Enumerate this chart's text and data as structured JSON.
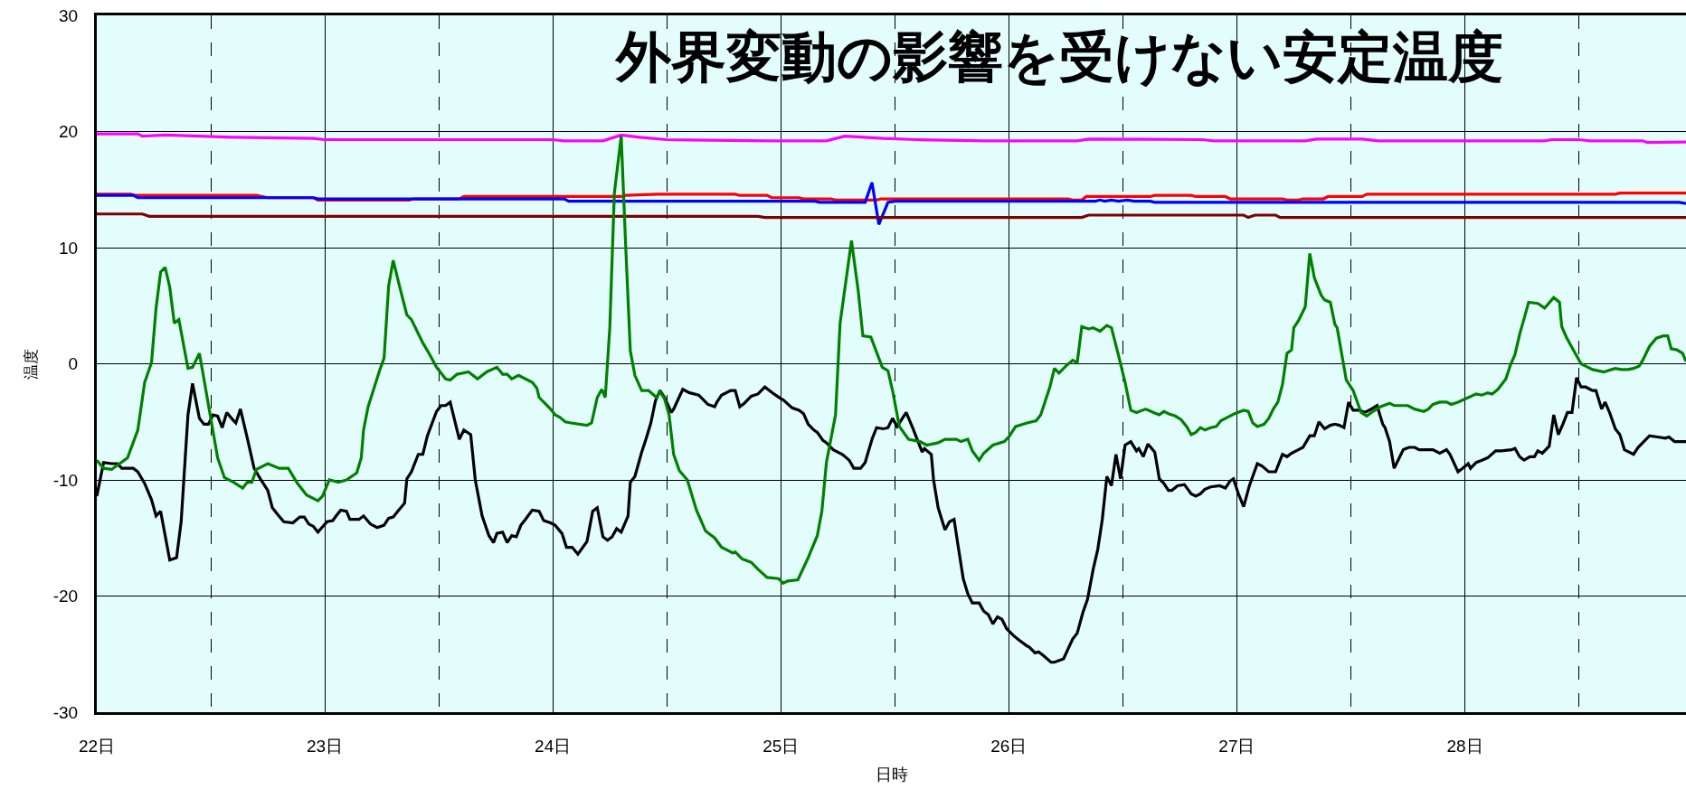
{
  "chart_data": {
    "type": "line",
    "title": "外界変動の影響を受けない安定温度",
    "xlabel": "日時",
    "ylabel": "温度",
    "xlim": [
      22,
      28.97
    ],
    "ylim": [
      -30,
      30
    ],
    "xticks": [
      {
        "value": 22,
        "label": "22日"
      },
      {
        "value": 22.5,
        "label": null
      },
      {
        "value": 23,
        "label": "23日"
      },
      {
        "value": 23.5,
        "label": null
      },
      {
        "value": 24,
        "label": "24日"
      },
      {
        "value": 24.5,
        "label": null
      },
      {
        "value": 25,
        "label": "25日"
      },
      {
        "value": 25.5,
        "label": null
      },
      {
        "value": 26,
        "label": "26日"
      },
      {
        "value": 26.5,
        "label": null
      },
      {
        "value": 27,
        "label": "27日"
      },
      {
        "value": 27.5,
        "label": null
      },
      {
        "value": 28,
        "label": "28日"
      },
      {
        "value": 28.5,
        "label": null
      }
    ],
    "yticks": [
      -30,
      -20,
      -10,
      0,
      10,
      20,
      30
    ],
    "grid": true,
    "series": [
      {
        "color": "#ff00ff",
        "x": [
          22.0,
          22.18,
          22.2,
          22.3,
          22.45,
          22.6,
          22.95,
          23.0,
          24.0,
          24.05,
          24.22,
          24.3,
          24.38,
          24.5,
          24.95,
          25.2,
          25.28,
          25.45,
          25.6,
          25.9,
          26.3,
          26.35,
          26.85,
          26.9,
          27.3,
          27.35,
          27.55,
          27.62,
          28.35,
          28.38,
          28.5,
          28.55,
          28.78,
          28.8,
          28.97
        ],
        "values": [
          19.8,
          19.8,
          19.6,
          19.7,
          19.6,
          19.5,
          19.4,
          19.3,
          19.3,
          19.2,
          19.2,
          19.7,
          19.5,
          19.3,
          19.2,
          19.2,
          19.6,
          19.4,
          19.3,
          19.2,
          19.2,
          19.35,
          19.3,
          19.2,
          19.2,
          19.35,
          19.35,
          19.2,
          19.2,
          19.3,
          19.3,
          19.2,
          19.2,
          19.05,
          19.1
        ]
      },
      {
        "color": "#ff0000",
        "x": [
          22.0,
          22.15,
          22.17,
          22.7,
          22.75,
          22.95,
          22.97,
          23.37,
          23.39,
          23.59,
          23.61,
          24.3,
          24.32,
          24.46,
          24.8,
          24.82,
          24.94,
          24.96,
          25.08,
          25.1,
          25.22,
          25.24,
          25.42,
          25.44,
          26.26,
          26.28,
          26.32,
          26.34,
          26.62,
          26.64,
          26.8,
          26.82,
          26.95,
          26.97,
          27.2,
          27.22,
          27.27,
          27.29,
          27.38,
          27.4,
          27.55,
          27.57,
          28.66,
          28.68,
          28.97
        ],
        "values": [
          14.6,
          14.6,
          14.5,
          14.5,
          14.3,
          14.3,
          14.1,
          14.1,
          14.2,
          14.2,
          14.4,
          14.4,
          14.5,
          14.6,
          14.6,
          14.5,
          14.5,
          14.3,
          14.3,
          14.2,
          14.2,
          14.1,
          14.1,
          14.2,
          14.2,
          14.1,
          14.1,
          14.4,
          14.4,
          14.5,
          14.5,
          14.4,
          14.4,
          14.2,
          14.2,
          14.1,
          14.1,
          14.2,
          14.2,
          14.4,
          14.4,
          14.6,
          14.6,
          14.7,
          14.7
        ]
      },
      {
        "color": "#0000ff",
        "x": [
          22.0,
          22.16,
          22.18,
          22.95,
          22.97,
          24.05,
          24.07,
          25.15,
          25.17,
          25.37,
          25.4,
          25.43,
          25.47,
          25.5,
          26.38,
          26.4,
          26.42,
          26.45,
          26.48,
          26.52,
          26.55,
          26.62,
          26.64,
          28.94,
          28.97
        ],
        "values": [
          14.5,
          14.5,
          14.3,
          14.3,
          14.2,
          14.2,
          14.0,
          14.0,
          13.9,
          13.9,
          15.6,
          12.0,
          13.9,
          14.0,
          14.0,
          14.1,
          14.0,
          14.1,
          14.0,
          14.1,
          14.0,
          14.0,
          13.9,
          13.9,
          13.8
        ]
      },
      {
        "color": "#800000",
        "x": [
          22.0,
          22.2,
          22.23,
          24.9,
          24.93,
          26.32,
          26.35,
          27.03,
          27.05,
          27.08,
          27.17,
          27.19,
          28.97
        ],
        "values": [
          12.9,
          12.9,
          12.7,
          12.7,
          12.6,
          12.6,
          12.8,
          12.8,
          12.6,
          12.8,
          12.8,
          12.6,
          12.6
        ]
      },
      {
        "color": "#000000",
        "x": [
          22.0,
          22.03,
          22.065,
          22.09,
          22.11,
          22.16,
          22.18,
          22.21,
          22.24,
          22.26,
          22.28,
          22.32,
          22.35,
          22.37,
          22.4,
          22.42,
          22.45,
          22.47,
          22.49,
          22.51,
          22.53,
          22.55,
          22.57,
          22.6,
          22.61,
          22.63,
          22.66,
          22.69,
          22.72,
          22.75,
          22.77,
          22.79,
          22.82,
          22.86,
          22.89,
          22.91,
          22.93,
          22.95,
          22.97,
          23.01,
          23.035,
          23.05,
          23.07,
          23.095,
          23.11,
          23.15,
          23.17,
          23.2,
          23.23,
          23.26,
          23.28,
          23.3,
          23.32,
          23.35,
          23.36,
          23.38,
          23.41,
          23.43,
          23.45,
          23.49,
          23.51,
          23.53,
          23.55,
          23.59,
          23.61,
          23.64,
          23.66,
          23.69,
          23.72,
          23.74,
          23.755,
          23.78,
          23.8,
          23.82,
          23.84,
          23.86,
          23.88,
          23.91,
          23.94,
          23.96,
          23.99,
          24.01,
          24.04,
          24.06,
          24.085,
          24.11,
          24.15,
          24.175,
          24.195,
          24.22,
          24.24,
          24.26,
          24.28,
          24.3,
          24.33,
          24.34,
          24.36,
          24.39,
          24.41,
          24.43,
          24.45,
          24.47,
          24.49,
          24.52,
          24.53,
          24.57,
          24.6,
          24.64,
          24.68,
          24.71,
          24.72,
          24.74,
          24.78,
          24.8,
          24.82,
          24.84,
          24.87,
          24.9,
          24.93,
          24.97,
          25.0,
          25.01,
          25.05,
          25.08,
          25.1,
          25.12,
          25.145,
          25.16,
          25.185,
          25.2,
          25.23,
          25.27,
          25.3,
          25.32,
          25.35,
          25.37,
          25.4,
          25.42,
          25.45,
          25.47,
          25.49,
          25.51,
          25.55,
          25.58,
          25.62,
          25.63,
          25.66,
          25.67,
          25.69,
          25.72,
          25.74,
          25.76,
          25.78,
          25.8,
          25.82,
          25.84,
          25.87,
          25.89,
          25.91,
          25.93,
          25.95,
          25.97,
          25.99,
          26.02,
          26.045,
          26.08,
          26.09,
          26.115,
          26.13,
          26.15,
          26.185,
          26.2,
          26.24,
          26.28,
          26.3,
          26.325,
          26.345,
          26.37,
          26.39,
          26.41,
          26.43,
          26.45,
          26.47,
          26.49,
          26.51,
          26.535,
          26.56,
          26.57,
          26.59,
          26.61,
          26.64,
          26.66,
          26.68,
          26.7,
          26.715,
          26.74,
          26.77,
          26.8,
          26.82,
          26.84,
          26.86,
          26.885,
          26.925,
          26.95,
          26.97,
          26.985,
          27.007,
          27.03,
          27.055,
          27.09,
          27.11,
          27.14,
          27.17,
          27.2,
          27.22,
          27.24,
          27.27,
          27.29,
          27.32,
          27.34,
          27.36,
          27.385,
          27.41,
          27.43,
          27.45,
          27.47,
          27.49,
          27.51,
          27.54,
          27.56,
          27.59,
          27.615,
          27.64,
          27.65,
          27.67,
          27.69,
          27.73,
          27.755,
          27.78,
          27.8,
          27.86,
          27.89,
          27.92,
          27.935,
          27.97,
          27.99,
          28.015,
          28.025,
          28.05,
          28.075,
          28.1,
          28.135,
          28.16,
          28.205,
          28.22,
          28.24,
          28.26,
          28.285,
          28.305,
          28.32,
          28.34,
          28.37,
          28.39,
          28.41,
          28.43,
          28.45,
          28.47,
          28.49,
          28.51,
          28.53,
          28.56,
          28.575,
          28.6,
          28.615,
          28.635,
          28.66,
          28.68,
          28.7,
          28.74,
          28.76,
          28.78,
          28.81,
          28.845,
          28.88,
          28.895,
          28.92,
          28.97
        ],
        "values": [
          -11.4,
          -8.5,
          -8.6,
          -8.6,
          -9.0,
          -9.0,
          -9.3,
          -10.3,
          -11.7,
          -13.1,
          -12.7,
          -16.9,
          -16.7,
          -13.6,
          -4.4,
          -1.7,
          -4.7,
          -5.2,
          -5.2,
          -4.4,
          -4.5,
          -5.5,
          -4.2,
          -4.9,
          -5.1,
          -3.9,
          -6.4,
          -9.0,
          -10.0,
          -10.9,
          -12.4,
          -12.9,
          -13.6,
          -13.7,
          -13.2,
          -13.2,
          -13.8,
          -14.0,
          -14.5,
          -13.6,
          -13.5,
          -13.1,
          -12.6,
          -12.7,
          -13.4,
          -13.4,
          -13.1,
          -13.8,
          -14.1,
          -13.9,
          -13.3,
          -13.2,
          -12.7,
          -12.0,
          -9.9,
          -9.3,
          -7.8,
          -7.8,
          -6.2,
          -4.1,
          -3.6,
          -3.6,
          -3.3,
          -6.5,
          -5.7,
          -6.1,
          -10.0,
          -13.1,
          -14.8,
          -15.4,
          -14.6,
          -14.5,
          -15.4,
          -14.8,
          -14.9,
          -13.9,
          -13.4,
          -12.6,
          -12.7,
          -13.5,
          -13.7,
          -13.9,
          -14.6,
          -15.8,
          -15.8,
          -16.4,
          -15.3,
          -12.7,
          -12.4,
          -14.9,
          -15.2,
          -14.9,
          -14.2,
          -14.5,
          -13.1,
          -10.2,
          -9.7,
          -7.6,
          -6.4,
          -5.1,
          -3.2,
          -2.3,
          -2.9,
          -4.2,
          -3.9,
          -2.2,
          -2.5,
          -2.7,
          -3.5,
          -3.7,
          -3.3,
          -2.7,
          -2.3,
          -2.3,
          -3.7,
          -3.4,
          -2.8,
          -2.6,
          -2.0,
          -2.6,
          -3.0,
          -3.1,
          -3.8,
          -4.0,
          -4.3,
          -5.2,
          -5.7,
          -5.9,
          -6.6,
          -6.8,
          -7.4,
          -7.8,
          -8.3,
          -9.0,
          -9.0,
          -8.5,
          -6.5,
          -5.5,
          -5.6,
          -5.5,
          -4.7,
          -5.4,
          -4.2,
          -5.6,
          -7.6,
          -7.3,
          -7.8,
          -10.0,
          -12.4,
          -14.3,
          -13.6,
          -13.4,
          -16.0,
          -18.5,
          -19.8,
          -20.6,
          -20.6,
          -21.3,
          -21.6,
          -22.4,
          -21.8,
          -22.0,
          -22.8,
          -23.4,
          -23.8,
          -24.3,
          -24.4,
          -24.9,
          -24.8,
          -25.1,
          -25.7,
          -25.7,
          -25.4,
          -23.7,
          -23.2,
          -21.4,
          -20.3,
          -17.7,
          -16.0,
          -13.4,
          -9.7,
          -10.5,
          -7.8,
          -9.9,
          -7.0,
          -6.7,
          -7.5,
          -7.3,
          -8.0,
          -6.9,
          -7.6,
          -9.9,
          -10.3,
          -10.9,
          -10.9,
          -10.5,
          -10.4,
          -11.2,
          -11.4,
          -11.2,
          -10.8,
          -10.6,
          -10.5,
          -10.7,
          -10.1,
          -9.9,
          -11.2,
          -12.3,
          -10.5,
          -8.6,
          -8.8,
          -9.3,
          -9.3,
          -7.8,
          -8.0,
          -7.7,
          -7.4,
          -7.2,
          -6.2,
          -6.2,
          -5.0,
          -5.6,
          -5.3,
          -5.2,
          -5.3,
          -5.5,
          -3.3,
          -4.0,
          -4.0,
          -4.2,
          -3.9,
          -3.6,
          -5.2,
          -5.5,
          -6.7,
          -9.0,
          -7.4,
          -7.2,
          -7.2,
          -7.4,
          -7.4,
          -7.7,
          -7.4,
          -7.8,
          -9.3,
          -9.0,
          -8.6,
          -9.0,
          -8.5,
          -8.3,
          -8.1,
          -7.5,
          -7.5,
          -7.4,
          -7.3,
          -8.0,
          -8.3,
          -8.0,
          -8.0,
          -7.5,
          -7.7,
          -7.1,
          -4.4,
          -6.1,
          -5.2,
          -4.2,
          -4.2,
          -1.2,
          -2.0,
          -2.0,
          -2.3,
          -2.3,
          -3.9,
          -3.3,
          -4.2,
          -5.6,
          -6.1,
          -7.4,
          -7.8,
          -7.2,
          -6.8,
          -6.2,
          -6.3,
          -6.4,
          -6.3,
          -6.7,
          -6.7
        ]
      },
      {
        "color": "#008000",
        "x": [
          22.0,
          22.03,
          22.065,
          22.135,
          22.18,
          22.21,
          22.24,
          22.26,
          22.28,
          22.3,
          22.32,
          22.34,
          22.36,
          22.4,
          22.42,
          22.45,
          22.47,
          22.5,
          22.53,
          22.56,
          22.6,
          22.64,
          22.66,
          22.68,
          22.7,
          22.75,
          22.8,
          22.84,
          22.88,
          22.92,
          22.97,
          22.99,
          23.02,
          23.06,
          23.095,
          23.14,
          23.16,
          23.17,
          23.19,
          23.24,
          23.26,
          23.28,
          23.3,
          23.33,
          23.36,
          23.38,
          23.43,
          23.46,
          23.49,
          23.53,
          23.55,
          23.58,
          23.63,
          23.67,
          23.71,
          23.755,
          23.78,
          23.8,
          23.82,
          23.85,
          23.88,
          23.91,
          23.93,
          23.94,
          23.97,
          23.99,
          24.01,
          24.03,
          24.055,
          24.08,
          24.15,
          24.17,
          24.195,
          24.215,
          24.23,
          24.25,
          24.27,
          24.3,
          24.32,
          24.34,
          24.36,
          24.39,
          24.42,
          24.455,
          24.47,
          24.49,
          24.51,
          24.53,
          24.555,
          24.59,
          24.63,
          24.67,
          24.71,
          24.74,
          24.79,
          24.8,
          24.83,
          24.87,
          24.9,
          24.94,
          24.99,
          25.01,
          25.03,
          25.075,
          25.12,
          25.16,
          25.18,
          25.2,
          25.24,
          25.26,
          25.31,
          25.34,
          25.36,
          25.395,
          25.445,
          25.47,
          25.49,
          25.52,
          25.56,
          25.61,
          25.64,
          25.69,
          25.72,
          25.77,
          25.79,
          25.82,
          25.84,
          25.87,
          25.89,
          25.93,
          25.98,
          26.0,
          26.03,
          26.08,
          26.12,
          26.14,
          26.18,
          26.2,
          26.22,
          26.25,
          26.28,
          26.3,
          26.32,
          26.35,
          26.37,
          26.4,
          26.43,
          26.45,
          26.48,
          26.51,
          26.535,
          26.56,
          26.6,
          26.635,
          26.66,
          26.68,
          26.7,
          26.73,
          26.755,
          26.78,
          26.8,
          26.82,
          26.84,
          26.86,
          26.885,
          26.91,
          26.93,
          26.96,
          26.99,
          27.03,
          27.05,
          27.07,
          27.09,
          27.12,
          27.14,
          27.16,
          27.18,
          27.2,
          27.22,
          27.24,
          27.25,
          27.27,
          27.3,
          27.32,
          27.34,
          27.37,
          27.385,
          27.41,
          27.43,
          27.44,
          27.48,
          27.51,
          27.545,
          27.57,
          27.59,
          27.63,
          27.67,
          27.69,
          27.75,
          27.78,
          27.82,
          27.84,
          27.86,
          27.89,
          27.92,
          27.94,
          27.97,
          28.005,
          28.05,
          28.075,
          28.1,
          28.12,
          28.145,
          28.18,
          28.2,
          28.22,
          28.24,
          28.28,
          28.32,
          28.35,
          28.39,
          28.415,
          28.425,
          28.445,
          28.47,
          28.51,
          28.53,
          28.56,
          28.61,
          28.66,
          28.685,
          28.715,
          28.74,
          28.765,
          28.78,
          28.81,
          28.84,
          28.87,
          28.89,
          28.905,
          28.93,
          28.955,
          28.97
        ],
        "values": [
          -8.3,
          -9.0,
          -9.1,
          -8.1,
          -5.7,
          -1.6,
          0.1,
          4.8,
          7.9,
          8.3,
          6.6,
          3.5,
          3.8,
          -0.4,
          -0.3,
          0.9,
          -1.3,
          -4.7,
          -8.1,
          -9.8,
          -10.2,
          -10.7,
          -10.2,
          -10.2,
          -9.1,
          -8.6,
          -9.0,
          -9.0,
          -10.3,
          -11.3,
          -11.8,
          -11.4,
          -10.0,
          -10.2,
          -10.0,
          -9.4,
          -8.1,
          -5.7,
          -3.7,
          -0.6,
          0.5,
          6.7,
          8.9,
          6.5,
          4.2,
          3.8,
          1.8,
          0.8,
          -0.3,
          -1.3,
          -1.4,
          -0.9,
          -0.7,
          -1.3,
          -0.7,
          -0.3,
          -0.9,
          -0.9,
          -1.3,
          -1.0,
          -1.3,
          -1.6,
          -2.1,
          -2.9,
          -3.5,
          -3.9,
          -4.4,
          -4.6,
          -5.0,
          -5.1,
          -5.3,
          -5.1,
          -2.9,
          -2.2,
          -2.9,
          3.1,
          14.7,
          19.6,
          10.0,
          1.1,
          -1.0,
          -2.3,
          -2.3,
          -2.9,
          -2.4,
          -3.0,
          -4.4,
          -7.8,
          -9.2,
          -10.0,
          -12.6,
          -14.4,
          -15.0,
          -15.8,
          -16.3,
          -16.2,
          -16.8,
          -17.1,
          -17.7,
          -18.4,
          -18.5,
          -18.9,
          -18.7,
          -18.6,
          -16.7,
          -14.8,
          -12.7,
          -8.5,
          -4.4,
          3.5,
          10.6,
          6.2,
          2.4,
          2.3,
          -0.3,
          -0.6,
          -2.3,
          -5.4,
          -6.5,
          -6.7,
          -7.0,
          -6.8,
          -6.5,
          -6.5,
          -6.7,
          -6.5,
          -7.5,
          -8.3,
          -7.7,
          -7.0,
          -6.7,
          -6.3,
          -5.4,
          -5.1,
          -4.9,
          -4.4,
          -2.0,
          -0.4,
          -0.8,
          -0.2,
          0.3,
          0.1,
          3.2,
          3.0,
          3.1,
          2.8,
          3.3,
          3.1,
          0.8,
          -1.6,
          -4.0,
          -4.2,
          -3.9,
          -4.2,
          -4.4,
          -4.1,
          -4.3,
          -4.5,
          -4.8,
          -5.4,
          -6.1,
          -5.9,
          -5.5,
          -5.7,
          -5.5,
          -5.4,
          -4.9,
          -4.6,
          -4.3,
          -4.0,
          -4.1,
          -5.1,
          -5.4,
          -5.2,
          -4.7,
          -3.9,
          -3.3,
          -1.8,
          0.9,
          1.2,
          3.1,
          3.7,
          4.9,
          9.5,
          7.4,
          5.9,
          5.5,
          5.3,
          3.4,
          3.1,
          -1.4,
          -2.3,
          -4.2,
          -4.5,
          -4.2,
          -3.7,
          -3.4,
          -3.6,
          -3.6,
          -3.9,
          -4.1,
          -3.9,
          -3.5,
          -3.3,
          -3.3,
          -3.5,
          -3.3,
          -3.0,
          -2.6,
          -2.7,
          -2.5,
          -2.6,
          -2.2,
          -1.3,
          -0.1,
          0.8,
          2.5,
          5.3,
          5.2,
          4.8,
          5.7,
          5.3,
          3.2,
          2.3,
          1.4,
          0.0,
          -0.2,
          -0.5,
          -0.7,
          -0.4,
          -0.5,
          -0.5,
          -0.4,
          -0.2,
          0.3,
          1.5,
          2.2,
          2.4,
          2.4,
          1.3,
          1.2,
          0.9,
          0.2
        ]
      }
    ]
  }
}
